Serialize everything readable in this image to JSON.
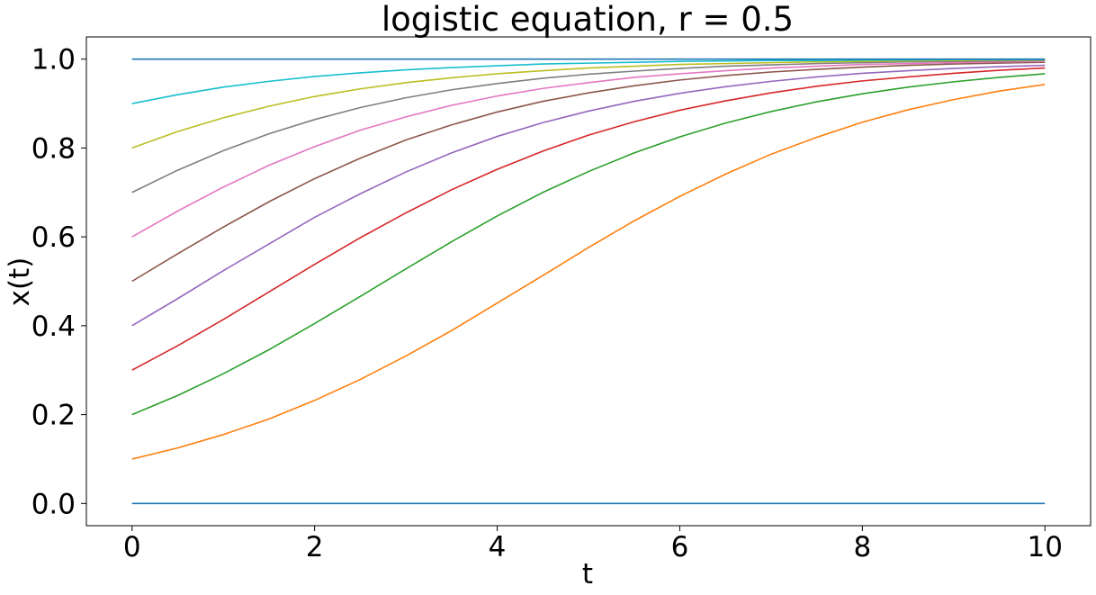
{
  "chart_data": {
    "type": "line",
    "title": "logistic equation, r = 0.5",
    "xlabel": "t",
    "ylabel": "x(t)",
    "xlim": [
      -0.5,
      10.5
    ],
    "ylim": [
      -0.05,
      1.05
    ],
    "xticks": [
      0,
      2,
      4,
      6,
      8,
      10
    ],
    "xtick_labels": [
      "0",
      "2",
      "4",
      "6",
      "8",
      "10"
    ],
    "yticks": [
      0.0,
      0.2,
      0.4,
      0.6,
      0.8,
      1.0
    ],
    "ytick_labels": [
      "0.0",
      "0.2",
      "0.4",
      "0.6",
      "0.8",
      "1.0"
    ],
    "grid": false,
    "x": [
      0,
      0.5,
      1,
      1.5,
      2,
      2.5,
      3,
      3.5,
      4,
      4.5,
      5,
      5.5,
      6,
      6.5,
      7,
      7.5,
      8,
      8.5,
      9,
      9.5,
      10
    ],
    "series": [
      {
        "color": "#1f77b4",
        "values": [
          0,
          0,
          0,
          0,
          0,
          0,
          0,
          0,
          0,
          0,
          0,
          0,
          0,
          0,
          0,
          0,
          0,
          0,
          0,
          0,
          0
        ]
      },
      {
        "color": "#ff7f0e",
        "values": [
          0.1,
          0.125,
          0.155,
          0.19,
          0.232,
          0.279,
          0.332,
          0.389,
          0.451,
          0.513,
          0.576,
          0.636,
          0.691,
          0.741,
          0.786,
          0.824,
          0.858,
          0.886,
          0.909,
          0.928,
          0.943
        ]
      },
      {
        "color": "#2ca02c",
        "values": [
          0.2,
          0.243,
          0.292,
          0.346,
          0.405,
          0.466,
          0.528,
          0.589,
          0.647,
          0.7,
          0.747,
          0.789,
          0.825,
          0.856,
          0.882,
          0.904,
          0.922,
          0.937,
          0.949,
          0.959,
          0.967
        ]
      },
      {
        "color": "#d62728",
        "values": [
          0.3,
          0.355,
          0.414,
          0.476,
          0.538,
          0.598,
          0.654,
          0.706,
          0.752,
          0.793,
          0.829,
          0.859,
          0.885,
          0.906,
          0.924,
          0.939,
          0.951,
          0.96,
          0.968,
          0.975,
          0.98
        ]
      },
      {
        "color": "#9467bd",
        "values": [
          0.4,
          0.461,
          0.524,
          0.584,
          0.644,
          0.697,
          0.746,
          0.789,
          0.826,
          0.857,
          0.883,
          0.905,
          0.923,
          0.938,
          0.95,
          0.96,
          0.968,
          0.974,
          0.979,
          0.983,
          0.986
        ]
      },
      {
        "color": "#8c564b",
        "values": [
          0.5,
          0.562,
          0.622,
          0.679,
          0.731,
          0.777,
          0.818,
          0.852,
          0.881,
          0.905,
          0.924,
          0.94,
          0.953,
          0.963,
          0.971,
          0.977,
          0.982,
          0.986,
          0.989,
          0.991,
          0.993
        ]
      },
      {
        "color": "#e377c2",
        "values": [
          0.6,
          0.658,
          0.712,
          0.761,
          0.803,
          0.84,
          0.87,
          0.896,
          0.917,
          0.934,
          0.947,
          0.959,
          0.967,
          0.974,
          0.98,
          0.984,
          0.988,
          0.99,
          0.992,
          0.994,
          0.995
        ]
      },
      {
        "color": "#7f7f7f",
        "values": [
          0.7,
          0.75,
          0.794,
          0.832,
          0.864,
          0.891,
          0.913,
          0.931,
          0.945,
          0.957,
          0.966,
          0.973,
          0.979,
          0.984,
          0.987,
          0.99,
          0.992,
          0.994,
          0.995,
          0.996,
          0.997
        ]
      },
      {
        "color": "#bcbd22",
        "values": [
          0.8,
          0.837,
          0.868,
          0.894,
          0.916,
          0.933,
          0.947,
          0.958,
          0.967,
          0.974,
          0.98,
          0.984,
          0.988,
          0.99,
          0.992,
          0.994,
          0.995,
          0.996,
          0.997,
          0.998,
          0.998
        ]
      },
      {
        "color": "#17becf",
        "values": [
          0.9,
          0.92,
          0.937,
          0.95,
          0.961,
          0.969,
          0.976,
          0.981,
          0.985,
          0.989,
          0.991,
          0.993,
          0.995,
          0.996,
          0.997,
          0.997,
          0.998,
          0.998,
          0.999,
          0.999,
          0.999
        ]
      },
      {
        "color": "#1f77b4",
        "values": [
          1,
          1,
          1,
          1,
          1,
          1,
          1,
          1,
          1,
          1,
          1,
          1,
          1,
          1,
          1,
          1,
          1,
          1,
          1,
          1,
          1
        ]
      }
    ]
  }
}
